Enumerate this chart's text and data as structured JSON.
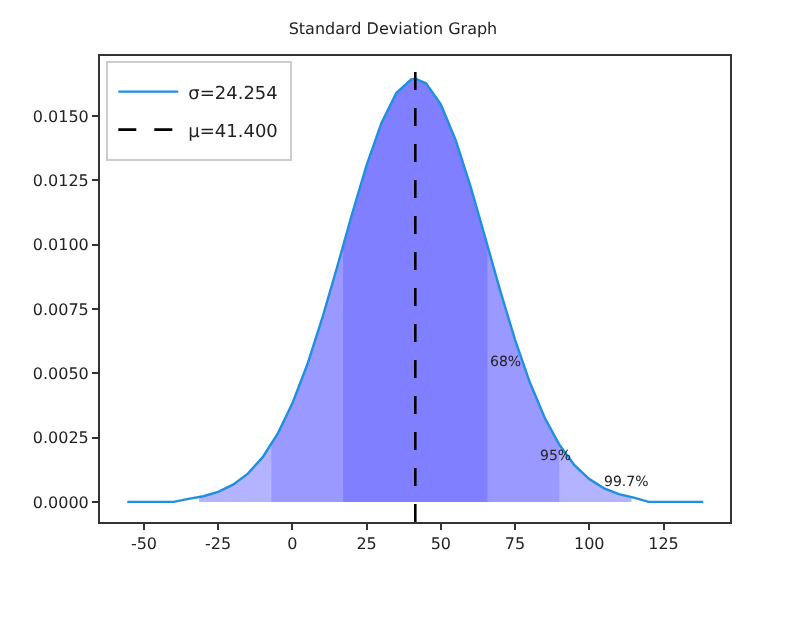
{
  "chart_data": {
    "type": "line",
    "title": "Standard Deviation Graph",
    "xlim": [
      -64.8,
      147.4
    ],
    "ylim": [
      -0.00078,
      0.01733
    ],
    "xticks": [
      -50,
      -25,
      0,
      25,
      50,
      75,
      100,
      125
    ],
    "yticks": [
      {
        "value": 0,
        "label": "0.0000"
      },
      {
        "value": 0.0025,
        "label": "0.0025"
      },
      {
        "value": 0.005,
        "label": "0.0050"
      },
      {
        "value": 0.0075,
        "label": "0.0075"
      },
      {
        "value": 0.01,
        "label": "0.0100"
      },
      {
        "value": 0.0125,
        "label": "0.0125"
      },
      {
        "value": 0.015,
        "label": "0.0150"
      }
    ],
    "grid": false,
    "legend": "top left",
    "marker": "none",
    "line_style": "solid",
    "series": [
      {
        "type": "area",
        "color": "#b3b3ff",
        "x": [
          -31.4,
          -30,
          -25,
          -20,
          -15,
          -10,
          -5,
          0,
          5,
          10,
          15,
          20,
          25,
          30,
          35,
          40,
          41.4,
          45,
          50,
          55,
          60,
          65,
          70,
          75,
          80,
          85,
          90,
          95,
          100,
          105,
          110,
          114.2
        ],
        "values": [
          0.00018,
          0.00022,
          0.00039,
          0.00067,
          0.0011,
          0.00174,
          0.00264,
          0.00383,
          0.00533,
          0.00712,
          0.0091,
          0.01115,
          0.01309,
          0.01473,
          0.01589,
          0.01642,
          0.01645,
          0.01627,
          0.01545,
          0.01406,
          0.01226,
          0.01025,
          0.00821,
          0.0063,
          0.00464,
          0.00327,
          0.00221,
          0.00143,
          0.00089,
          0.00053,
          0.0003,
          0.00018
        ]
      },
      {
        "type": "area",
        "color": "#9999ff",
        "x": [
          -7.1,
          -5,
          0,
          5,
          10,
          15,
          20,
          25,
          30,
          35,
          40,
          41.4,
          45,
          50,
          55,
          60,
          65,
          70,
          75,
          80,
          85,
          89.9
        ],
        "values": [
          0.00223,
          0.00264,
          0.00383,
          0.00533,
          0.00712,
          0.0091,
          0.01115,
          0.01309,
          0.01473,
          0.01589,
          0.01642,
          0.01645,
          0.01627,
          0.01545,
          0.01406,
          0.01226,
          0.01025,
          0.00821,
          0.0063,
          0.00464,
          0.00327,
          0.00223
        ]
      },
      {
        "type": "area",
        "color": "#7f7fff",
        "x": [
          17.1,
          20,
          25,
          30,
          35,
          40,
          41.4,
          45,
          50,
          55,
          60,
          65,
          65.7
        ],
        "values": [
          0.00998,
          0.01115,
          0.01309,
          0.01473,
          0.01589,
          0.01642,
          0.01645,
          0.01627,
          0.01545,
          0.01406,
          0.01226,
          0.01025,
          0.00998
        ]
      },
      {
        "name": "σ=24.254",
        "color": "#1f8fe0",
        "x": [
          -55.6,
          -50,
          -45,
          -40,
          -35,
          -30,
          -25,
          -20,
          -15,
          -10,
          -5,
          0,
          5,
          10,
          15,
          20,
          25,
          30,
          35,
          40,
          41.4,
          45,
          50,
          55,
          60,
          65,
          70,
          75,
          80,
          85,
          90,
          95,
          100,
          105,
          110,
          115,
          120,
          125,
          130,
          135,
          138.4
        ],
        "values": [
          0,
          0,
          0,
          0,
          0.00012,
          0.00022,
          0.00039,
          0.00067,
          0.0011,
          0.00174,
          0.00264,
          0.00383,
          0.00533,
          0.00712,
          0.0091,
          0.01115,
          0.01309,
          0.01473,
          0.01589,
          0.01642,
          0.01645,
          0.01627,
          0.01545,
          0.01406,
          0.01226,
          0.01025,
          0.00821,
          0.0063,
          0.00464,
          0.00327,
          0.00221,
          0.00143,
          0.00089,
          0.00053,
          0.0003,
          0.00017,
          0,
          0,
          0,
          0,
          0
        ]
      }
    ],
    "ref_lines": [
      {
        "axis": "x",
        "value": 41.4,
        "label": "μ=41.400",
        "color": "#000000",
        "line_style": "dashed"
      }
    ],
    "annotations": [
      "68%",
      "95%",
      "99.7%"
    ]
  }
}
